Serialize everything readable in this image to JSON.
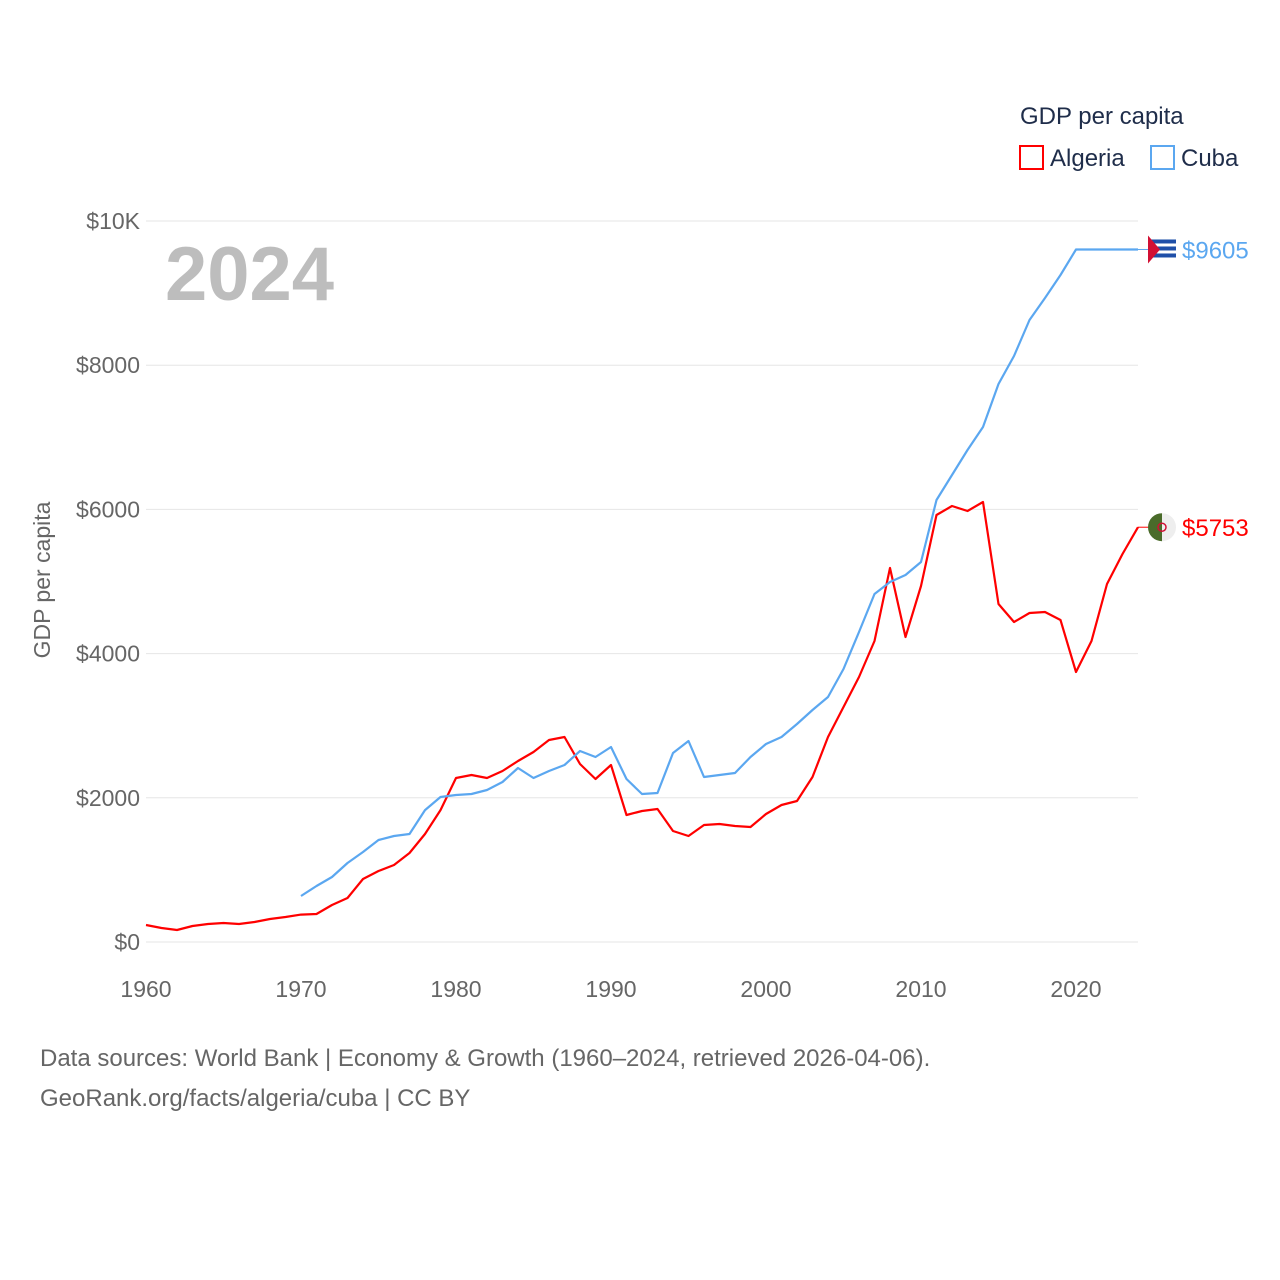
{
  "chart_data": {
    "type": "line",
    "title": "GDP per capita",
    "ylabel": "GDP per capita",
    "xlabel": "",
    "year_label": "2024",
    "xlim": [
      1960,
      2024
    ],
    "ylim": [
      0,
      10000
    ],
    "x_ticks": [
      1960,
      1970,
      1980,
      1990,
      2000,
      2010,
      2020
    ],
    "y_ticks": [
      0,
      2000,
      4000,
      6000,
      8000,
      10000
    ],
    "y_tick_labels": [
      "$0",
      "$2000",
      "$4000",
      "$6000",
      "$8000",
      "$10K"
    ],
    "grid": true,
    "legend_position": "top-right",
    "series": [
      {
        "name": "Algeria",
        "color": "#ff0000",
        "end_label": "$5753",
        "start_year": 1960,
        "values": [
          236,
          194,
          166,
          222,
          250,
          263,
          250,
          277,
          319,
          347,
          380,
          388,
          513,
          610,
          874,
          985,
          1068,
          1234,
          1498,
          1830,
          2275,
          2316,
          2275,
          2372,
          2510,
          2635,
          2802,
          2843,
          2469,
          2261,
          2455,
          1761,
          1817,
          1845,
          1540,
          1470,
          1623,
          1637,
          1609,
          1595,
          1775,
          1900,
          1956,
          2288,
          2843,
          3259,
          3675,
          4175,
          5187,
          4230,
          4937,
          5922,
          6047,
          5978,
          6103,
          4688,
          4438,
          4563,
          4577,
          4466,
          3745,
          4175,
          4965,
          5381,
          5753
        ]
      },
      {
        "name": "Cuba",
        "color": "#5ba7f0",
        "end_label": "$9605",
        "start_year": 1970,
        "values": [
          638,
          777,
          902,
          1096,
          1248,
          1415,
          1470,
          1498,
          1830,
          2011,
          2039,
          2053,
          2108,
          2219,
          2413,
          2275,
          2372,
          2455,
          2649,
          2566,
          2705,
          2261,
          2053,
          2067,
          2621,
          2788,
          2288,
          2316,
          2344,
          2566,
          2746,
          2843,
          3024,
          3218,
          3398,
          3786,
          4300,
          4827,
          4993,
          5090,
          5270,
          6130,
          6477,
          6824,
          7143,
          7739,
          8128,
          8627,
          8932,
          9251,
          9605,
          9605,
          9605,
          9605,
          9605
        ]
      }
    ]
  },
  "footer": {
    "line1": "Data sources: World Bank | Economy & Growth (1960–2024, retrieved 2026-04-06).",
    "line2": "GeoRank.org/facts/algeria/cuba | CC BY"
  }
}
